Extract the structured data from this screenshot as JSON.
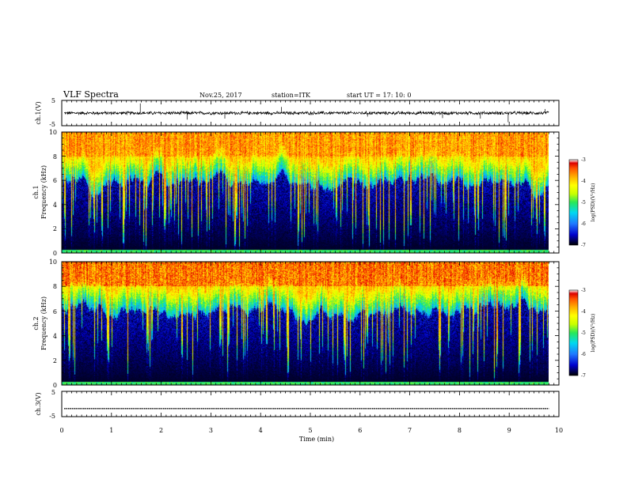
{
  "header": {
    "title": "VLF Spectra",
    "date": "Nov.25, 2017",
    "station": "station=ITK",
    "start": "start UT = 17: 10: 0"
  },
  "colors": {
    "colormap": [
      "#000000",
      "#0000cc",
      "#1e78ff",
      "#00d8f0",
      "#28e858",
      "#c8ff00",
      "#ffff00",
      "#ffb000",
      "#ff5000",
      "#dd0000",
      "#ffffff"
    ],
    "trace": "#000000"
  },
  "chart_data": [
    {
      "type": "line",
      "panel": "ch1-waveform",
      "ylabel": "ch.1(V)",
      "ylim": [
        -5,
        5
      ],
      "yticks": [
        "5",
        "-5"
      ],
      "baseline": 0,
      "noise_amplitude_v": 0.6,
      "spikes": [
        {
          "t": 1.58,
          "v": 3.8
        },
        {
          "t": 2.52,
          "v": -2.6
        },
        {
          "t": 3.28,
          "v": -2.2
        },
        {
          "t": 4.42,
          "v": 2.4
        },
        {
          "t": 6.15,
          "v": -1.4
        },
        {
          "t": 7.66,
          "v": -2.0
        },
        {
          "t": 8.42,
          "v": -2.2
        },
        {
          "t": 8.98,
          "v": -3.6
        },
        {
          "t": 9.72,
          "v": 1.6
        }
      ]
    },
    {
      "type": "heatmap",
      "panel": "ch1-spectrogram",
      "ylabel": "Frequency (kHz)",
      "channel_label": "ch.1",
      "ylim": [
        0,
        10
      ],
      "yticks": [
        "0",
        "2",
        "4",
        "6",
        "8",
        "10"
      ],
      "typical_transition_khz": 6.0,
      "colorbar": {
        "label": "log(PSD)(V²/Hz)",
        "range": [
          -7,
          -3
        ],
        "ticks": [
          "-3",
          "-4",
          "-5",
          "-6",
          "-7"
        ]
      }
    },
    {
      "type": "heatmap",
      "panel": "ch2-spectrogram",
      "ylabel": "Frequency (kHz)",
      "channel_label": "ch.2",
      "ylim": [
        0,
        10
      ],
      "yticks": [
        "0",
        "2",
        "4",
        "6",
        "8",
        "10"
      ],
      "typical_transition_khz": 6.0,
      "colorbar": {
        "label": "log(PSD)(V²/Hz)",
        "range": [
          -7,
          -3
        ],
        "ticks": [
          "-3",
          "-4",
          "-5",
          "-6",
          "-7"
        ]
      }
    },
    {
      "type": "line",
      "panel": "ch3-waveform",
      "ylabel": "ch.3(V)",
      "ylim": [
        -5,
        5
      ],
      "yticks": [
        "5",
        "-5"
      ],
      "baseline": -1.8
    }
  ],
  "time_axis": {
    "xlabel": "Time (min)",
    "xlim": [
      0,
      10
    ],
    "ticks": [
      "0",
      "1",
      "2",
      "3",
      "4",
      "5",
      "6",
      "7",
      "8",
      "9",
      "10"
    ],
    "data_end_min": 9.8
  }
}
